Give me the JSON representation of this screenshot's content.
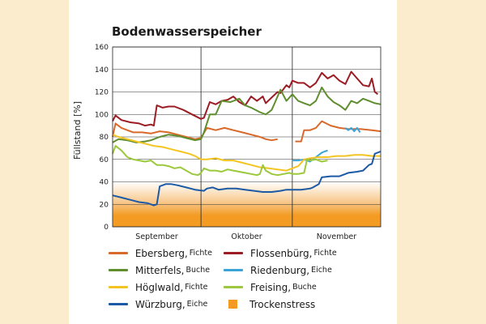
{
  "chart_data": {
    "type": "line",
    "title": "Bodenwasserspeicher",
    "ylabel": "Füllstand [%]",
    "xlabel": "",
    "ylim": [
      0,
      160
    ],
    "yticks": [
      0,
      20,
      40,
      60,
      80,
      100,
      120,
      140,
      160
    ],
    "x_range_days": [
      0,
      91
    ],
    "months": [
      {
        "label": "September",
        "start_day": 0,
        "end_day": 30
      },
      {
        "label": "Oktober",
        "start_day": 30,
        "end_day": 61
      },
      {
        "label": "November",
        "start_day": 61,
        "end_day": 91
      }
    ],
    "grid": true,
    "stress_band": {
      "label": "Trockenstress",
      "from": 0,
      "to": 40,
      "color": "#f39b23"
    },
    "series": [
      {
        "site": "Ebersberg",
        "tree": "Fichte",
        "color": "#d9692a",
        "points": [
          [
            0,
            80
          ],
          [
            1,
            92
          ],
          [
            3,
            88
          ],
          [
            5,
            86
          ],
          [
            7,
            84
          ],
          [
            10,
            84
          ],
          [
            13,
            83
          ],
          [
            16,
            85
          ],
          [
            19,
            84
          ],
          [
            22,
            82
          ],
          [
            25,
            80
          ],
          [
            28,
            78
          ],
          [
            30,
            79
          ],
          [
            32,
            88
          ],
          [
            35,
            86
          ],
          [
            38,
            88
          ],
          [
            41,
            86
          ],
          [
            44,
            84
          ],
          [
            47,
            82
          ],
          [
            50,
            80
          ],
          [
            52,
            78
          ],
          [
            54,
            77
          ],
          [
            56,
            78
          ],
          null,
          [
            62,
            76
          ],
          [
            64,
            76
          ],
          [
            65,
            86
          ],
          [
            67,
            86
          ],
          [
            69,
            88
          ],
          [
            71,
            94
          ],
          [
            74,
            90
          ],
          [
            77,
            88
          ],
          [
            80,
            87
          ],
          [
            84,
            87
          ],
          [
            88,
            86
          ],
          [
            91,
            85
          ]
        ]
      },
      {
        "site": "Flossenbürg",
        "tree": "Fichte",
        "color": "#9c1c24",
        "points": [
          [
            0,
            94
          ],
          [
            1,
            99
          ],
          [
            3,
            95
          ],
          [
            6,
            93
          ],
          [
            9,
            92
          ],
          [
            11,
            90
          ],
          [
            13,
            91
          ],
          [
            14,
            90
          ],
          [
            15,
            108
          ],
          [
            17,
            106
          ],
          [
            19,
            107
          ],
          [
            21,
            107
          ],
          [
            24,
            104
          ],
          [
            27,
            100
          ],
          [
            30,
            96
          ],
          [
            31,
            97
          ],
          [
            33,
            111
          ],
          [
            35,
            109
          ],
          [
            37,
            112
          ],
          [
            39,
            113
          ],
          [
            41,
            116
          ],
          [
            43,
            111
          ],
          [
            45,
            108
          ],
          [
            47,
            116
          ],
          [
            49,
            112
          ],
          [
            51,
            116
          ],
          [
            52,
            110
          ],
          [
            54,
            115
          ],
          [
            56,
            120
          ],
          [
            57,
            119
          ],
          [
            59,
            126
          ],
          [
            60,
            124
          ],
          [
            61,
            130
          ],
          [
            63,
            128
          ],
          [
            65,
            128
          ],
          [
            67,
            124
          ],
          [
            69,
            128
          ],
          [
            71,
            137
          ],
          [
            73,
            132
          ],
          [
            75,
            135
          ],
          [
            77,
            130
          ],
          [
            79,
            127
          ],
          [
            81,
            138
          ],
          [
            83,
            132
          ],
          [
            85,
            126
          ],
          [
            87,
            125
          ],
          [
            88,
            132
          ],
          [
            89,
            120
          ],
          [
            90,
            118
          ]
        ]
      },
      {
        "site": "Mitterfels",
        "tree": "Buche",
        "color": "#5f8e2e",
        "points": [
          [
            0,
            75
          ],
          [
            2,
            78
          ],
          [
            5,
            77
          ],
          [
            8,
            75
          ],
          [
            11,
            76
          ],
          [
            13,
            77
          ],
          [
            16,
            80
          ],
          [
            19,
            82
          ],
          [
            22,
            81
          ],
          [
            25,
            79
          ],
          [
            28,
            77
          ],
          [
            30,
            78
          ],
          [
            31,
            84
          ],
          [
            33,
            100
          ],
          [
            35,
            100
          ],
          [
            37,
            112
          ],
          [
            40,
            111
          ],
          [
            43,
            114
          ],
          [
            45,
            108
          ],
          [
            47,
            106
          ],
          [
            50,
            102
          ],
          [
            52,
            100
          ],
          [
            54,
            104
          ],
          [
            55,
            110
          ],
          [
            57,
            122
          ],
          [
            59,
            112
          ],
          [
            61,
            118
          ],
          [
            63,
            112
          ],
          [
            65,
            110
          ],
          [
            67,
            108
          ],
          [
            69,
            112
          ],
          [
            71,
            124
          ],
          [
            73,
            116
          ],
          [
            75,
            111
          ],
          [
            77,
            108
          ],
          [
            79,
            104
          ],
          [
            81,
            112
          ],
          [
            83,
            110
          ],
          [
            85,
            114
          ],
          [
            87,
            112
          ],
          [
            89,
            110
          ],
          [
            91,
            109
          ]
        ]
      },
      {
        "site": "Riedenburg",
        "tree": "Eiche",
        "color": "#3ca3d8",
        "points": [
          [
            61,
            59
          ],
          [
            63,
            59
          ],
          [
            65,
            60
          ],
          [
            67,
            58
          ],
          [
            69,
            62
          ],
          [
            71,
            66
          ],
          [
            72,
            67
          ],
          [
            73,
            68
          ],
          null,
          [
            79,
            88
          ],
          [
            80,
            86
          ],
          [
            81,
            88
          ],
          [
            82,
            85
          ],
          [
            83,
            88
          ],
          [
            84,
            84
          ]
        ]
      },
      {
        "site": "Höglwald",
        "tree": "Fichte",
        "color": "#f4c522",
        "points": [
          [
            0,
            82
          ],
          [
            2,
            80
          ],
          [
            5,
            78
          ],
          [
            8,
            76
          ],
          [
            11,
            74
          ],
          [
            14,
            72
          ],
          [
            17,
            71
          ],
          [
            20,
            69
          ],
          [
            23,
            67
          ],
          [
            26,
            65
          ],
          [
            28,
            63
          ],
          [
            30,
            60
          ],
          [
            32,
            60
          ],
          [
            35,
            61
          ],
          [
            38,
            59
          ],
          [
            41,
            59
          ],
          [
            44,
            57
          ],
          [
            47,
            55
          ],
          [
            50,
            53
          ],
          [
            53,
            52
          ],
          [
            56,
            51
          ],
          [
            59,
            50
          ],
          [
            61,
            52
          ],
          [
            63,
            54
          ],
          [
            65,
            60
          ],
          [
            67,
            61
          ],
          [
            70,
            62
          ],
          [
            73,
            62
          ],
          [
            76,
            63
          ],
          [
            79,
            63
          ],
          [
            82,
            64
          ],
          [
            85,
            64
          ],
          [
            88,
            63
          ],
          [
            91,
            63
          ]
        ]
      },
      {
        "site": "Freising",
        "tree": "Buche",
        "color": "#9bc83c",
        "points": [
          [
            0,
            65
          ],
          [
            1,
            72
          ],
          [
            3,
            68
          ],
          [
            5,
            62
          ],
          [
            7,
            60
          ],
          [
            9,
            59
          ],
          [
            11,
            58
          ],
          [
            13,
            59
          ],
          [
            15,
            55
          ],
          [
            17,
            55
          ],
          [
            19,
            54
          ],
          [
            21,
            52
          ],
          [
            23,
            53
          ],
          [
            25,
            50
          ],
          [
            27,
            47
          ],
          [
            29,
            46
          ],
          [
            30,
            48
          ],
          [
            31,
            52
          ],
          [
            33,
            50
          ],
          [
            35,
            50
          ],
          [
            37,
            49
          ],
          [
            39,
            51
          ],
          [
            41,
            50
          ],
          [
            43,
            49
          ],
          [
            45,
            48
          ],
          [
            47,
            47
          ],
          [
            49,
            46
          ],
          [
            50,
            47
          ],
          [
            51,
            55
          ],
          [
            52,
            50
          ],
          [
            54,
            47
          ],
          [
            56,
            46
          ],
          [
            58,
            47
          ],
          [
            60,
            48
          ],
          [
            61,
            47
          ],
          [
            63,
            47
          ],
          [
            65,
            48
          ],
          [
            66,
            60
          ],
          [
            67,
            59
          ],
          [
            69,
            60
          ],
          [
            71,
            58
          ],
          [
            73,
            59
          ]
        ]
      },
      {
        "site": "Würzburg",
        "tree": "Eiche",
        "color": "#1d5aa6",
        "points": [
          [
            0,
            28
          ],
          [
            3,
            26
          ],
          [
            6,
            24
          ],
          [
            9,
            22
          ],
          [
            12,
            21
          ],
          [
            14,
            19
          ],
          [
            15,
            20
          ],
          [
            16,
            36
          ],
          [
            18,
            38
          ],
          [
            20,
            38
          ],
          [
            22,
            37
          ],
          [
            25,
            35
          ],
          [
            28,
            33
          ],
          [
            31,
            32
          ],
          [
            32,
            34
          ],
          [
            34,
            35
          ],
          [
            36,
            33
          ],
          [
            39,
            34
          ],
          [
            42,
            34
          ],
          [
            45,
            33
          ],
          [
            48,
            32
          ],
          [
            51,
            31
          ],
          [
            54,
            31
          ],
          [
            57,
            32
          ],
          [
            59,
            33
          ],
          [
            61,
            33
          ],
          [
            64,
            33
          ],
          [
            67,
            34
          ],
          [
            68,
            35
          ],
          [
            70,
            38
          ],
          [
            71,
            44
          ],
          [
            74,
            45
          ],
          [
            77,
            45
          ],
          [
            80,
            48
          ],
          [
            83,
            49
          ],
          [
            85,
            50
          ],
          [
            87,
            55
          ],
          [
            88,
            56
          ],
          [
            89,
            65
          ],
          [
            91,
            67
          ]
        ]
      }
    ]
  }
}
